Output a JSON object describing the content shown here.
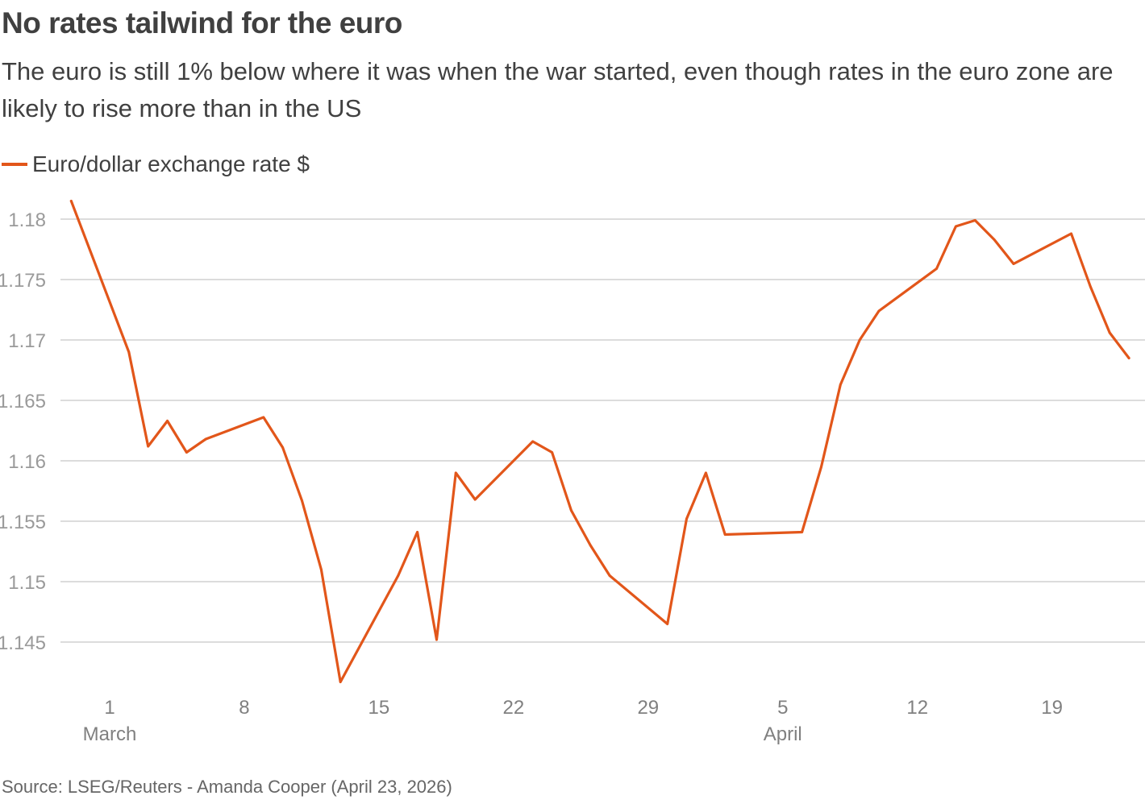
{
  "title": "No rates tailwind for the euro",
  "subtitle": "The euro is still 1% below where it was when the war started, even though rates in the euro zone are likely to rise more than in the US",
  "source": "Source: LSEG/Reuters - Amanda Cooper (April 23, 2026)",
  "colors": {
    "line": "#e2561a",
    "grid": "#c8c8c8",
    "tick_text": "#9a9a9a",
    "x_text": "#808080"
  },
  "chart_data": {
    "type": "line",
    "title": "No rates tailwind for the euro",
    "xlabel": "",
    "ylabel": "",
    "grid": true,
    "legend_position": "top-left",
    "ylim": [
      1.141,
      1.182
    ],
    "xlim": [
      "2026-02-26",
      "2026-04-23"
    ],
    "y_ticks": [
      1.145,
      1.15,
      1.155,
      1.16,
      1.165,
      1.17,
      1.175,
      1.18
    ],
    "y_tick_labels": [
      "1.145",
      "1.15",
      "1.155",
      "1.16",
      "1.165",
      "1.17",
      "1.175",
      "1.18"
    ],
    "x_ticks": [
      {
        "date": "2026-03-01",
        "label": "1",
        "sublabel": "March"
      },
      {
        "date": "2026-03-08",
        "label": "8",
        "sublabel": ""
      },
      {
        "date": "2026-03-15",
        "label": "15",
        "sublabel": ""
      },
      {
        "date": "2026-03-22",
        "label": "22",
        "sublabel": ""
      },
      {
        "date": "2026-03-29",
        "label": "29",
        "sublabel": ""
      },
      {
        "date": "2026-04-05",
        "label": "5",
        "sublabel": "April"
      },
      {
        "date": "2026-04-12",
        "label": "12",
        "sublabel": ""
      },
      {
        "date": "2026-04-19",
        "label": "19",
        "sublabel": ""
      }
    ],
    "series": [
      {
        "name": "Euro/dollar exchange rate $",
        "color": "#e2561a",
        "points": [
          {
            "x": "2026-02-27",
            "y": 1.1815
          },
          {
            "x": "2026-03-02",
            "y": 1.169
          },
          {
            "x": "2026-03-03",
            "y": 1.1612
          },
          {
            "x": "2026-03-04",
            "y": 1.1633
          },
          {
            "x": "2026-03-05",
            "y": 1.1607
          },
          {
            "x": "2026-03-06",
            "y": 1.1618
          },
          {
            "x": "2026-03-09",
            "y": 1.1636
          },
          {
            "x": "2026-03-10",
            "y": 1.1611
          },
          {
            "x": "2026-03-11",
            "y": 1.1567
          },
          {
            "x": "2026-03-12",
            "y": 1.151
          },
          {
            "x": "2026-03-13",
            "y": 1.1417
          },
          {
            "x": "2026-03-16",
            "y": 1.1505
          },
          {
            "x": "2026-03-17",
            "y": 1.1541
          },
          {
            "x": "2026-03-18",
            "y": 1.1452
          },
          {
            "x": "2026-03-19",
            "y": 1.159
          },
          {
            "x": "2026-03-20",
            "y": 1.1568
          },
          {
            "x": "2026-03-23",
            "y": 1.1616
          },
          {
            "x": "2026-03-24",
            "y": 1.1607
          },
          {
            "x": "2026-03-25",
            "y": 1.1559
          },
          {
            "x": "2026-03-26",
            "y": 1.153
          },
          {
            "x": "2026-03-27",
            "y": 1.1505
          },
          {
            "x": "2026-03-30",
            "y": 1.1465
          },
          {
            "x": "2026-03-31",
            "y": 1.1552
          },
          {
            "x": "2026-04-01",
            "y": 1.159
          },
          {
            "x": "2026-04-02",
            "y": 1.1539
          },
          {
            "x": "2026-04-06",
            "y": 1.1541
          },
          {
            "x": "2026-04-07",
            "y": 1.1595
          },
          {
            "x": "2026-04-08",
            "y": 1.1663
          },
          {
            "x": "2026-04-09",
            "y": 1.17
          },
          {
            "x": "2026-04-10",
            "y": 1.1724
          },
          {
            "x": "2026-04-13",
            "y": 1.1759
          },
          {
            "x": "2026-04-14",
            "y": 1.1794
          },
          {
            "x": "2026-04-15",
            "y": 1.1799
          },
          {
            "x": "2026-04-16",
            "y": 1.1783
          },
          {
            "x": "2026-04-17",
            "y": 1.1763
          },
          {
            "x": "2026-04-20",
            "y": 1.1788
          },
          {
            "x": "2026-04-21",
            "y": 1.1744
          },
          {
            "x": "2026-04-22",
            "y": 1.1706
          },
          {
            "x": "2026-04-23",
            "y": 1.1685
          }
        ]
      }
    ]
  }
}
